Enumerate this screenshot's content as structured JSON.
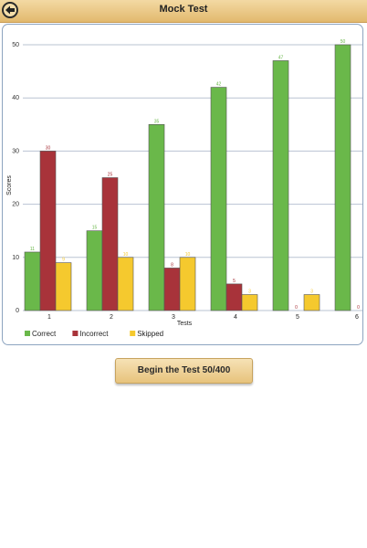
{
  "header": {
    "title": "Mock Test"
  },
  "cta": {
    "label": "Begin the Test 50/400"
  },
  "colors": {
    "correct": "#6ab84a",
    "incorrect": "#a8333a",
    "skipped": "#f5c92e"
  },
  "chart_data": {
    "type": "bar",
    "categories": [
      "1",
      "2",
      "3",
      "4",
      "5",
      "6"
    ],
    "series": [
      {
        "name": "Correct",
        "values": [
          11,
          15,
          35,
          42,
          47,
          50
        ]
      },
      {
        "name": "Incorrect",
        "values": [
          30,
          25,
          8,
          5,
          0,
          0
        ]
      },
      {
        "name": "Skipped",
        "values": [
          9,
          10,
          10,
          3,
          3,
          null
        ]
      }
    ],
    "xlabel": "Tests",
    "ylabel": "Scores",
    "ylim": [
      0,
      50
    ],
    "yticks": [
      0,
      10,
      20,
      30,
      40,
      50
    ],
    "grid": true,
    "legend": "bottom-left"
  }
}
